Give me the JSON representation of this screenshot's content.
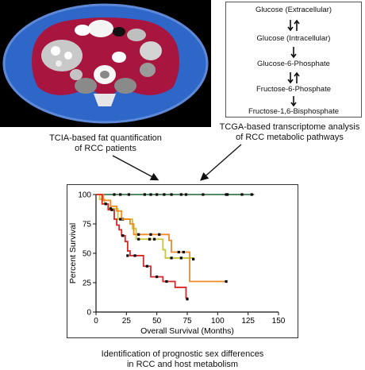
{
  "ct_caption": {
    "line1": "TCIA-based fat quantification",
    "line2": "of RCC  patients"
  },
  "pathway": {
    "nodes": [
      "Glucose (Extracellular)",
      "Glucose (Intracellular)",
      "Glucose-6-Phosphate",
      "Fructose-6-Phosphate",
      "Fructose-1,6-Bisphosphate"
    ],
    "arrows": [
      "reversible",
      "forward",
      "reversible",
      "forward"
    ]
  },
  "tcga_caption": {
    "line1": "TCGA-based transcriptome analysis",
    "line2": "of RCC metabolic pathways"
  },
  "bottom_caption": {
    "line1": "Identification of prognostic sex differences",
    "line2": "in RCC and host metabolism"
  },
  "chart_data": {
    "type": "line",
    "xlabel": "Overall Survival (Months)",
    "ylabel": "Percent Survival",
    "xlim": [
      0,
      150
    ],
    "ylim": [
      0,
      100
    ],
    "xticks": [
      0,
      25,
      50,
      75,
      100,
      125,
      150
    ],
    "yticks": [
      0,
      25,
      50,
      75,
      100
    ],
    "series": [
      {
        "color": "#3a7a52",
        "steps": [
          [
            0,
            100
          ],
          [
            130,
            100
          ]
        ],
        "censors": [
          [
            15,
            100
          ],
          [
            20,
            100
          ],
          [
            27,
            100
          ],
          [
            40,
            100
          ],
          [
            45,
            100
          ],
          [
            50,
            100
          ],
          [
            56,
            100
          ],
          [
            62,
            100
          ],
          [
            70,
            100
          ],
          [
            74,
            100
          ],
          [
            88,
            100
          ],
          [
            107,
            100
          ],
          [
            108,
            100
          ],
          [
            120,
            100
          ],
          [
            128,
            100
          ]
        ]
      },
      {
        "color": "#c8c63a",
        "steps": [
          [
            0,
            100
          ],
          [
            3,
            96
          ],
          [
            7,
            92
          ],
          [
            10,
            88
          ],
          [
            18,
            79
          ],
          [
            30,
            71
          ],
          [
            33,
            62
          ],
          [
            55,
            53
          ],
          [
            57,
            46
          ],
          [
            78,
            46
          ],
          [
            80,
            45
          ]
        ],
        "censors": [
          [
            12,
            88
          ],
          [
            22,
            79
          ],
          [
            35,
            62
          ],
          [
            44,
            62
          ],
          [
            48,
            62
          ],
          [
            62,
            46
          ],
          [
            70,
            46
          ],
          [
            80,
            45
          ]
        ]
      },
      {
        "color": "#f08a24",
        "steps": [
          [
            0,
            100
          ],
          [
            6,
            95
          ],
          [
            12,
            90
          ],
          [
            17,
            86
          ],
          [
            21,
            79
          ],
          [
            28,
            75
          ],
          [
            31,
            66
          ],
          [
            60,
            61
          ],
          [
            62,
            51
          ],
          [
            76,
            51
          ],
          [
            77,
            26
          ],
          [
            107,
            26
          ]
        ],
        "censors": [
          [
            20,
            79
          ],
          [
            35,
            66
          ],
          [
            45,
            66
          ],
          [
            52,
            66
          ],
          [
            68,
            51
          ],
          [
            72,
            51
          ],
          [
            107,
            26
          ]
        ]
      },
      {
        "color": "#d8282a",
        "steps": [
          [
            0,
            100
          ],
          [
            5,
            92
          ],
          [
            10,
            87
          ],
          [
            15,
            79
          ],
          [
            17,
            74
          ],
          [
            19,
            70
          ],
          [
            21,
            65
          ],
          [
            24,
            60
          ],
          [
            26,
            52
          ],
          [
            28,
            48
          ],
          [
            39,
            39
          ],
          [
            45,
            30
          ],
          [
            55,
            26
          ],
          [
            65,
            21
          ],
          [
            74,
            12
          ],
          [
            75,
            11
          ]
        ],
        "censors": [
          [
            8,
            92
          ],
          [
            13,
            87
          ],
          [
            22,
            65
          ],
          [
            26,
            48
          ],
          [
            32,
            48
          ],
          [
            42,
            39
          ],
          [
            50,
            30
          ],
          [
            58,
            26
          ],
          [
            75,
            11
          ]
        ]
      }
    ]
  }
}
